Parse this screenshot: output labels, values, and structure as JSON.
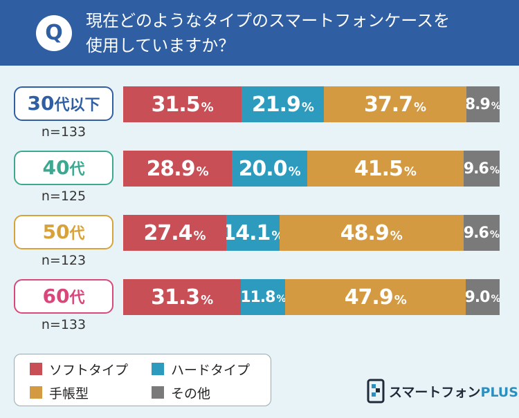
{
  "question": {
    "badge": "Q",
    "line1": "現在どのようなタイプのスマートフォンケースを",
    "line2": "使用していますか？"
  },
  "colors": {
    "header": "#2f5ea3",
    "soft": "#c74f55",
    "hard": "#2c9bbd",
    "notebook": "#d49a42",
    "other": "#7a7a7a",
    "age30": "#2f5ea3",
    "age40": "#3ba88f",
    "age50": "#d8a23a",
    "age60": "#d9477a"
  },
  "chart_data": {
    "type": "bar",
    "stacked": true,
    "orientation": "horizontal",
    "unit": "%",
    "categories": [
      "30代以下",
      "40代",
      "50代",
      "60代"
    ],
    "category_num": [
      "30",
      "40",
      "50",
      "60"
    ],
    "category_suffix": [
      "代以下",
      "代",
      "代",
      "代"
    ],
    "sample_sizes": [
      "n=133",
      "n=125",
      "n=123",
      "n=133"
    ],
    "series": [
      {
        "name": "ソフトタイプ",
        "values": [
          31.5,
          28.9,
          27.4,
          31.3
        ]
      },
      {
        "name": "ハードタイプ",
        "values": [
          21.9,
          20.0,
          14.1,
          11.8
        ]
      },
      {
        "name": "手帳型",
        "values": [
          37.7,
          41.5,
          48.9,
          47.9
        ]
      },
      {
        "name": "その他",
        "values": [
          8.9,
          9.6,
          9.6,
          9.0
        ]
      }
    ],
    "legend_position": "bottom-left"
  },
  "brand": {
    "name": "スマートフォン",
    "plus": "PLUS",
    "icon": "brand-logo-icon"
  }
}
